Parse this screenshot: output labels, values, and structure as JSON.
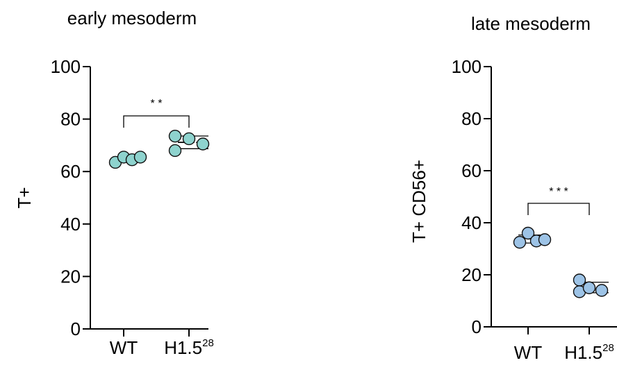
{
  "chart_data": [
    {
      "type": "scatter",
      "title": "early mesoderm",
      "ylabel": "T+",
      "ylim": [
        0,
        100
      ],
      "yticks": [
        "0",
        "20",
        "40",
        "60",
        "80",
        "100"
      ],
      "categories": [
        "WT",
        "H1.5"
      ],
      "category_superscripts": [
        "",
        "28"
      ],
      "series": [
        {
          "values": [
            63.5,
            65.5,
            64.5,
            65.5
          ],
          "color": "#8ed3ce"
        },
        {
          "values": [
            73.5,
            68.0,
            72.5,
            70.5
          ],
          "color": "#8ed3ce"
        }
      ],
      "significance": "* *"
    },
    {
      "type": "scatter",
      "title": "late mesoderm",
      "ylabel": "T+ CD56+",
      "ylim": [
        0,
        100
      ],
      "yticks": [
        "0",
        "20",
        "40",
        "60",
        "80",
        "100"
      ],
      "categories": [
        "WT",
        "H1.5"
      ],
      "category_superscripts": [
        "",
        "28"
      ],
      "series": [
        {
          "values": [
            32.5,
            36.0,
            33.0,
            33.5
          ],
          "color": "#9dc3e6"
        },
        {
          "values": [
            18.0,
            13.5,
            15.0,
            14.0
          ],
          "color": "#9dc3e6"
        }
      ],
      "significance": "* * *"
    }
  ]
}
